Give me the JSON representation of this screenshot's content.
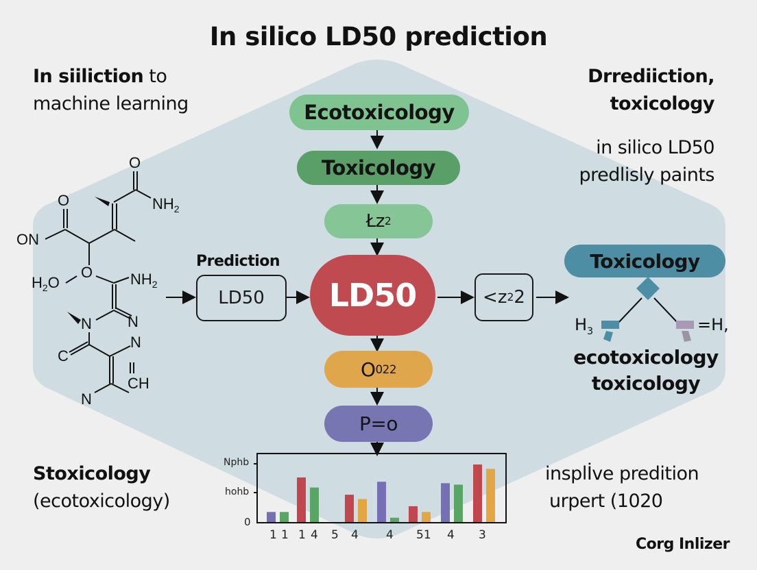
{
  "title": "In silico LD50 prediction",
  "top_left": {
    "bold": "In siiliction",
    "rest": " to",
    "line2": "machine learning"
  },
  "top_right": {
    "line1": "Drrediiction,",
    "line2": "toxicology",
    "line3": "in silico LD50",
    "line4": "predlisly paints"
  },
  "bottom_left": {
    "line1": "Stoxicology",
    "line2": "(ecotoxicology)"
  },
  "bottom_right": {
    "line1": "insplİve predition",
    "line2": "urpert (1020",
    "credit": "Corg Inlizer"
  },
  "flow": {
    "ecotoxicology": "Ecotoxicology",
    "toxicology": "Toxicology",
    "lz2_base": "Łz",
    "lz2_sup": "2",
    "ld50_main": "LD50",
    "o22_base": "O",
    "o22_sup1": "0",
    "o22_sub": "2",
    "o22_sup2": "2",
    "p_eq_o": "P=o"
  },
  "prediction": {
    "label": "Prediction",
    "box": "LD50"
  },
  "output_box": {
    "pre": "<z",
    "sup": "2",
    "post": "2"
  },
  "right_tree": {
    "header": "Toxicology",
    "left_label": "H",
    "left_sub": "3",
    "right_label": "=H,",
    "line1": "ecotoxicology",
    "line2": "toxicology"
  },
  "molecule": {
    "atoms": [
      "O",
      "NH2",
      "O",
      "ON",
      "H2O",
      "O",
      "NH2",
      "N",
      "N",
      "N",
      "C",
      "N",
      "CH"
    ]
  },
  "colors": {
    "background": "#efefef",
    "hexagon": "#cfdde3",
    "ecotox_pill": "#7fc490",
    "tox_pill": "#5a9f68",
    "lz_pill": "#85c596",
    "ld50_main": "#bf4a50",
    "o22_pill": "#e0a64c",
    "p_pill": "#7875b3",
    "right_tox_pill": "#4d8ea4",
    "bar_purple": "#7470b3",
    "bar_green": "#58a566",
    "bar_red": "#c0474e",
    "bar_orange": "#e2a645"
  },
  "chart_data": {
    "type": "bar",
    "title": "",
    "xlabel": "",
    "ylabel": "",
    "ytick_labels": [
      "0",
      "hohb",
      "Nphb"
    ],
    "ylim": [
      0,
      2.1
    ],
    "xtick_labels": [
      "1",
      "1",
      "1",
      "4",
      "5",
      "4",
      "4",
      "51",
      "4",
      "3"
    ],
    "bars": [
      {
        "group": 1,
        "color": "purple",
        "value": 0.35
      },
      {
        "group": 1,
        "color": "green",
        "value": 0.35
      },
      {
        "group": 2,
        "color": "red",
        "value": 1.55
      },
      {
        "group": 2,
        "color": "green",
        "value": 1.2
      },
      {
        "group": 3,
        "color": "red",
        "value": 0.95
      },
      {
        "group": 3,
        "color": "orange",
        "value": 0.8
      },
      {
        "group": 4,
        "color": "purple",
        "value": 1.4
      },
      {
        "group": 4,
        "color": "green",
        "value": 0.15
      },
      {
        "group": 5,
        "color": "red",
        "value": 0.55
      },
      {
        "group": 5,
        "color": "orange",
        "value": 0.35
      },
      {
        "group": 6,
        "color": "purple",
        "value": 1.35
      },
      {
        "group": 6,
        "color": "green",
        "value": 1.3
      },
      {
        "group": 7,
        "color": "red",
        "value": 2.0
      },
      {
        "group": 7,
        "color": "orange",
        "value": 1.85
      }
    ],
    "grid": false,
    "legend": null
  }
}
